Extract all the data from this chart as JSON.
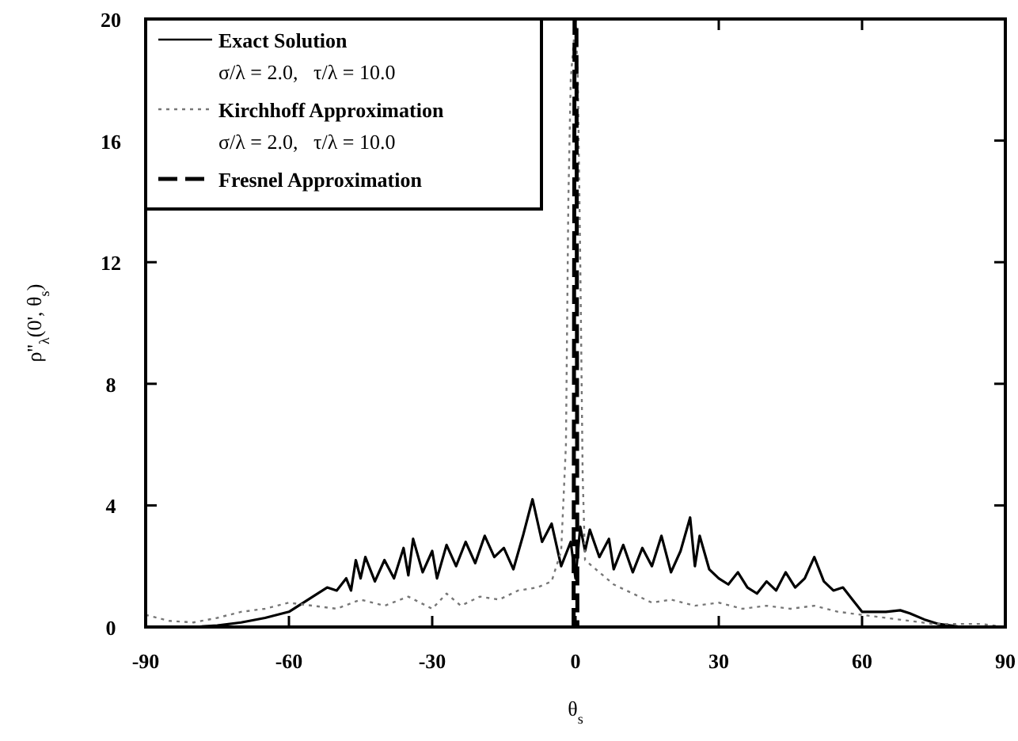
{
  "chart_data": {
    "type": "line",
    "xlabel": "θ$_{s}$",
    "ylabel": "ρ''$_{λ}$(0', θ$_{s}$)",
    "xlim": [
      -90,
      90
    ],
    "ylim": [
      0,
      20
    ],
    "xticks": [
      -90,
      -60,
      -30,
      0,
      30,
      60,
      90
    ],
    "yticks": [
      0,
      4,
      8,
      12,
      16,
      20
    ],
    "grid": false,
    "legend": "top left",
    "annotations": [
      "σ/λ = 2.0,   τ/λ = 10.0",
      "σ/λ = 2.0,   τ/λ = 10.0"
    ],
    "series": [
      {
        "name": "Exact  Solution",
        "color": "#000000",
        "line_style": "solid",
        "x": [
          -90,
          -80,
          -75,
          -70,
          -65,
          -60,
          -57,
          -55,
          -52,
          -50,
          -48,
          -47,
          -46,
          -45,
          -44,
          -42,
          -40,
          -38,
          -36,
          -35,
          -34,
          -32,
          -30,
          -29,
          -27,
          -25,
          -23,
          -21,
          -19,
          -17,
          -15,
          -13,
          -11,
          -9,
          -7,
          -5,
          -3,
          -1,
          0,
          1,
          2,
          3,
          5,
          7,
          8,
          10,
          12,
          14,
          16,
          18,
          20,
          22,
          24,
          25,
          26,
          28,
          30,
          32,
          34,
          36,
          38,
          40,
          42,
          44,
          46,
          48,
          50,
          52,
          54,
          56,
          58,
          60,
          62,
          65,
          68,
          70,
          73,
          76,
          80,
          85,
          90
        ],
        "values": [
          0,
          0,
          0.05,
          0.15,
          0.3,
          0.5,
          0.8,
          1.0,
          1.3,
          1.2,
          1.6,
          1.2,
          2.2,
          1.6,
          2.3,
          1.5,
          2.2,
          1.6,
          2.6,
          1.7,
          2.9,
          1.8,
          2.5,
          1.6,
          2.7,
          2.0,
          2.8,
          2.1,
          3.0,
          2.3,
          2.6,
          1.9,
          3.0,
          4.2,
          2.8,
          3.4,
          2.0,
          2.8,
          1.6,
          3.3,
          2.5,
          3.2,
          2.3,
          2.9,
          1.9,
          2.7,
          1.8,
          2.6,
          2.0,
          3.0,
          1.8,
          2.5,
          3.6,
          2.0,
          3.0,
          1.9,
          1.6,
          1.4,
          1.8,
          1.3,
          1.1,
          1.5,
          1.2,
          1.8,
          1.3,
          1.6,
          2.3,
          1.5,
          1.2,
          1.3,
          0.9,
          0.5,
          0.5,
          0.5,
          0.55,
          0.45,
          0.25,
          0.1,
          0.02,
          0,
          0
        ]
      },
      {
        "name": "Kirchhoff  Approximation",
        "color": "#777777",
        "line_style": "dotted",
        "x": [
          -90,
          -85,
          -80,
          -75,
          -70,
          -65,
          -60,
          -55,
          -50,
          -45,
          -40,
          -35,
          -30,
          -27,
          -24,
          -20,
          -16,
          -12,
          -8,
          -5,
          -3,
          -2,
          -1.5,
          -1,
          0,
          0.5,
          1,
          1.5,
          2,
          5,
          8,
          12,
          16,
          20,
          25,
          30,
          35,
          40,
          45,
          50,
          55,
          60,
          65,
          70,
          75,
          80,
          85,
          90
        ],
        "values": [
          0.4,
          0.2,
          0.15,
          0.3,
          0.5,
          0.6,
          0.8,
          0.7,
          0.6,
          0.9,
          0.7,
          1.0,
          0.6,
          1.1,
          0.7,
          1.0,
          0.9,
          1.2,
          1.3,
          1.5,
          2.5,
          6,
          14,
          18,
          20,
          18,
          12,
          5,
          2.2,
          1.8,
          1.4,
          1.1,
          0.8,
          0.9,
          0.7,
          0.8,
          0.6,
          0.7,
          0.6,
          0.7,
          0.5,
          0.4,
          0.3,
          0.2,
          0.1,
          0.1,
          0.1,
          0
        ]
      },
      {
        "name": "Fresnel  Approximation",
        "color": "#000000",
        "line_style": "dashed",
        "x": [
          -0.4,
          -0.2,
          0.2,
          0.4
        ],
        "values": [
          0,
          20,
          20,
          0
        ]
      }
    ]
  }
}
